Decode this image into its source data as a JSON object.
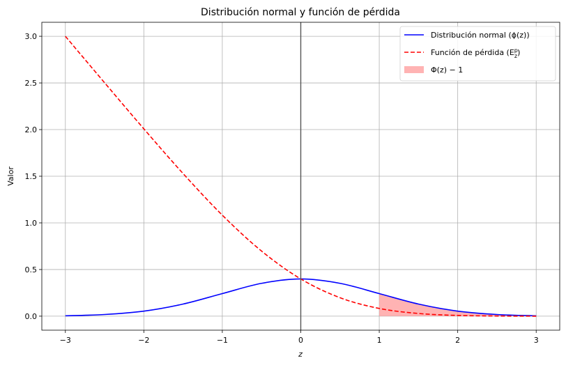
{
  "chart_data": {
    "type": "line",
    "title": "Distribución normal y función de pérdida",
    "xlabel": "z",
    "ylabel": "Valor",
    "xlim": [
      -3.3,
      3.3
    ],
    "ylim": [
      -0.15,
      3.15
    ],
    "x_ticks": [
      -3,
      -2,
      -1,
      0,
      1,
      2,
      3
    ],
    "x_tick_labels": [
      "−3",
      "−2",
      "−1",
      "0",
      "1",
      "2",
      "3"
    ],
    "y_ticks": [
      0.0,
      0.5,
      1.0,
      1.5,
      2.0,
      2.5,
      3.0
    ],
    "y_tick_labels": [
      "0.0",
      "0.5",
      "1.0",
      "1.5",
      "2.0",
      "2.5",
      "3.0"
    ],
    "grid": true,
    "legend_position": "top-right",
    "vertical_reference_line_x": 0,
    "x": [
      -3.0,
      -2.5,
      -2.0,
      -1.5,
      -1.0,
      -0.5,
      0.0,
      0.5,
      1.0,
      1.5,
      2.0,
      2.5,
      3.0
    ],
    "series": [
      {
        "name": "Distribución normal (ϕ(z))",
        "style": "solid",
        "color": "#0000ff",
        "values": [
          0.004,
          0.018,
          0.054,
          0.13,
          0.242,
          0.352,
          0.399,
          0.352,
          0.242,
          0.13,
          0.054,
          0.018,
          0.004
        ]
      },
      {
        "name": "Función de pérdida (E",
        "name_sup": "p",
        "name_sub": "z",
        "name_end": ")",
        "style": "dashed",
        "color": "#ff0000",
        "values": [
          3.0,
          2.502,
          2.008,
          1.529,
          1.083,
          0.698,
          0.399,
          0.198,
          0.083,
          0.029,
          0.008,
          0.002,
          0.0
        ]
      }
    ],
    "shaded_region": {
      "name": "Φ(z) − 1",
      "color": "#ff9999",
      "x_range": [
        1,
        3
      ],
      "x": [
        1.0,
        1.25,
        1.5,
        1.75,
        2.0,
        2.25,
        2.5,
        2.75,
        3.0
      ],
      "upper": [
        0.242,
        0.183,
        0.13,
        0.086,
        0.054,
        0.032,
        0.018,
        0.009,
        0.004
      ],
      "lower": [
        0,
        0,
        0,
        0,
        0,
        0,
        0,
        0,
        0
      ]
    }
  }
}
